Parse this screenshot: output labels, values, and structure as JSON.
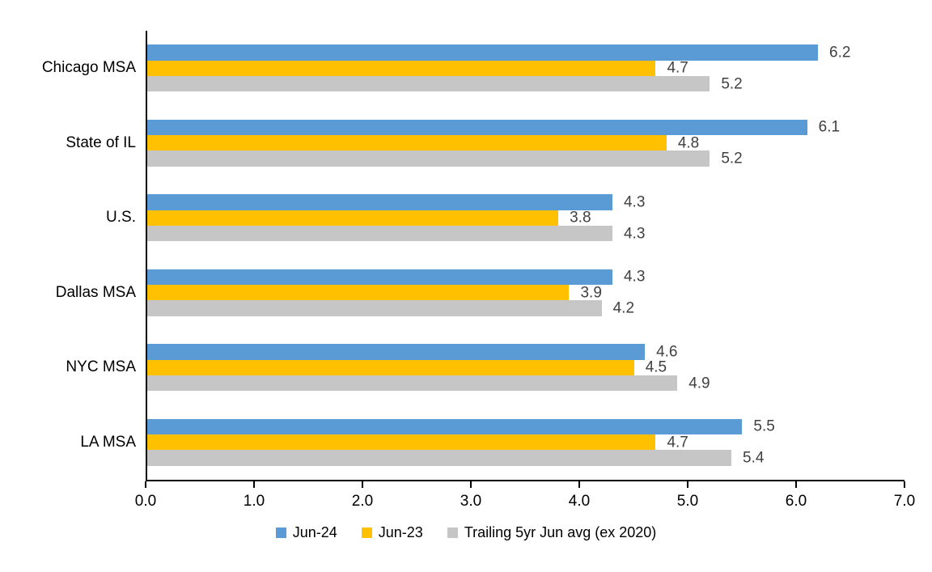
{
  "chart_data": {
    "type": "bar",
    "orientation": "horizontal",
    "title": "",
    "xlabel": "",
    "ylabel": "",
    "xlim": [
      0,
      7
    ],
    "x_ticks": [
      "0.0",
      "1.0",
      "2.0",
      "3.0",
      "4.0",
      "5.0",
      "6.0",
      "7.0"
    ],
    "grid": false,
    "legend_position": "bottom",
    "value_labels_shown": true,
    "value_label_color": "#404040",
    "axis_color": "#000000",
    "categories": [
      "Chicago MSA",
      "State of IL",
      "U.S.",
      "Dallas MSA",
      "NYC MSA",
      "LA MSA"
    ],
    "series": [
      {
        "name": "Jun-24",
        "color": "#5B9BD5",
        "values": [
          6.2,
          6.1,
          4.3,
          4.3,
          4.6,
          5.5
        ]
      },
      {
        "name": "Jun-23",
        "color": "#FFC000",
        "values": [
          4.7,
          4.8,
          3.8,
          3.9,
          4.5,
          4.7
        ]
      },
      {
        "name": "Trailing 5yr Jun avg (ex 2020)",
        "color": "#C6C6C6",
        "values": [
          5.2,
          5.2,
          4.3,
          4.2,
          4.9,
          5.4
        ]
      }
    ]
  }
}
